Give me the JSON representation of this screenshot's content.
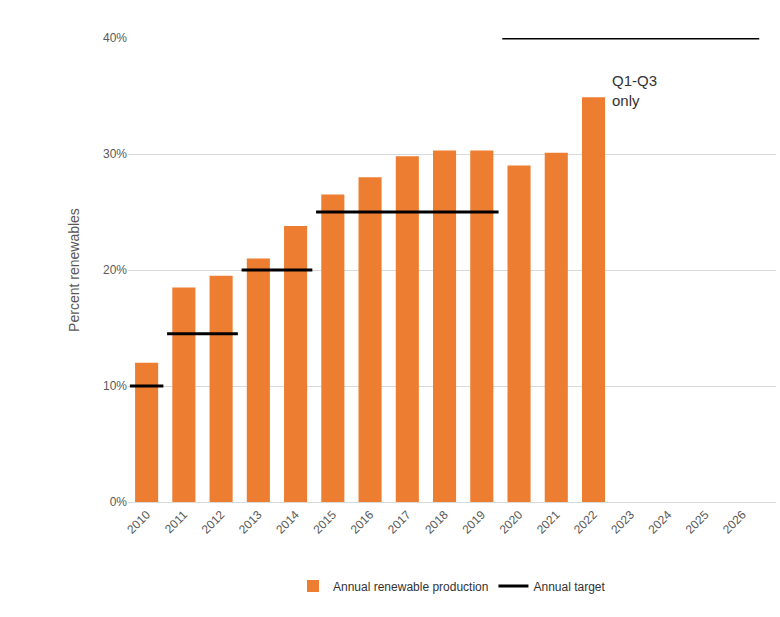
{
  "chart_data": {
    "type": "bar",
    "y_label": "Percent renewables",
    "categories": [
      "2010",
      "2011",
      "2012",
      "2013",
      "2014",
      "2015",
      "2016",
      "2017",
      "2018",
      "2019",
      "2020",
      "2021",
      "2022",
      "2023",
      "2024",
      "2025",
      "2026"
    ],
    "series": [
      {
        "name": "Annual renewable production",
        "type": "bar",
        "color": "#ed7d31",
        "values": [
          12,
          18.5,
          19.5,
          21,
          23.8,
          26.5,
          28,
          29.8,
          30.3,
          30.3,
          29,
          30.1,
          34.9,
          null,
          null,
          null,
          null
        ]
      },
      {
        "name": "Annual target",
        "type": "line",
        "color": "#000000",
        "values": [
          10,
          14.5,
          14.5,
          20,
          20,
          25,
          25,
          25,
          25,
          25,
          40,
          40,
          40,
          40,
          40,
          40,
          40
        ]
      }
    ],
    "annotations": [
      "Q1-Q3\nonly"
    ],
    "ylim": [
      0,
      40
    ],
    "yticks": [
      {
        "value": 0,
        "label": "0%"
      },
      {
        "value": 10,
        "label": "10%"
      },
      {
        "value": 20,
        "label": "20%"
      },
      {
        "value": 30,
        "label": "30%"
      },
      {
        "value": 40,
        "label": "40%"
      }
    ],
    "grid": true,
    "legend": "bottom"
  }
}
